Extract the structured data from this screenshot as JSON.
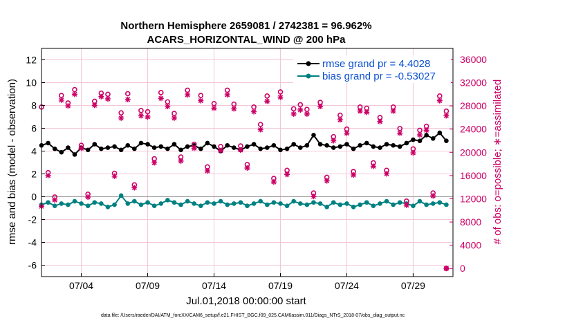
{
  "chart_data": {
    "type": "line",
    "title_line1": "Northern Hemisphere 2659081 / 2742381 = 96.962%",
    "title_line2": "ACARS_HORIZONTAL_WIND @ 200 hPa",
    "xlabel": "Jul.01,2018 00:00:00 start",
    "ylabel_left": "rmse and bias (model - observation)",
    "ylabel_right": "# of obs: o=possible; ∗=assimilated",
    "footer": "data file: /Users/raeder/DAI/ATM_forcXX/CAM6_setup/f.e21.FHIST_BGC.f09_025.CAM6assim.011/Diags_NTrS_2018-07/obs_diag_output.nc",
    "xlim": [
      1,
      32
    ],
    "ylim_left": [
      -7,
      13
    ],
    "ylim_right": [
      -1400,
      37900
    ],
    "x_ticks": [
      {
        "x": 4,
        "label": "07/04"
      },
      {
        "x": 9,
        "label": "07/09"
      },
      {
        "x": 14,
        "label": "07/14"
      },
      {
        "x": 19,
        "label": "07/19"
      },
      {
        "x": 24,
        "label": "07/24"
      },
      {
        "x": 29,
        "label": "07/29"
      }
    ],
    "y_ticks_left": [
      {
        "v": 12,
        "label": "12"
      },
      {
        "v": 10,
        "label": "10"
      },
      {
        "v": 8,
        "label": "8"
      },
      {
        "v": 6,
        "label": "6"
      },
      {
        "v": 4,
        "label": "4"
      },
      {
        "v": 2,
        "label": "2"
      },
      {
        "v": 0,
        "label": "0"
      },
      {
        "v": -2,
        "label": "-2"
      },
      {
        "v": -4,
        "label": "-4"
      },
      {
        "v": -6,
        "label": "-6"
      }
    ],
    "y_ticks_right": [
      {
        "v": 36000,
        "label": "36000"
      },
      {
        "v": 32000,
        "label": "32000"
      },
      {
        "v": 28000,
        "label": "28000"
      },
      {
        "v": 24000,
        "label": "24000"
      },
      {
        "v": 20000,
        "label": "20000"
      },
      {
        "v": 16000,
        "label": "16000"
      },
      {
        "v": 12000,
        "label": "12000"
      },
      {
        "v": 8000,
        "label": "8000"
      },
      {
        "v": 4000,
        "label": "4000"
      },
      {
        "v": 0,
        "label": "0"
      }
    ],
    "series": [
      {
        "name": "rmse grand pr = 4.4028",
        "color": "#000000",
        "axis": "left",
        "marker": "dot",
        "x": [
          1.0,
          1.5,
          2.0,
          2.5,
          3.0,
          3.5,
          4.0,
          4.5,
          5.0,
          5.5,
          6.0,
          6.5,
          7.0,
          7.5,
          8.0,
          8.5,
          9.0,
          9.5,
          10.0,
          10.5,
          11.0,
          11.5,
          12.0,
          12.5,
          13.0,
          13.5,
          14.0,
          14.5,
          15.0,
          15.5,
          16.0,
          16.5,
          17.0,
          17.5,
          18.0,
          18.5,
          19.0,
          19.5,
          20.0,
          20.5,
          21.0,
          21.5,
          22.0,
          22.5,
          23.0,
          23.5,
          24.0,
          24.5,
          25.0,
          25.5,
          26.0,
          26.5,
          27.0,
          27.5,
          28.0,
          28.5,
          29.0,
          29.5,
          30.0,
          30.5,
          31.0,
          31.5
        ],
        "y": [
          4.5,
          4.7,
          4.2,
          3.9,
          4.3,
          3.7,
          4.3,
          4.1,
          4.6,
          4.2,
          4.3,
          4.4,
          4.1,
          4.5,
          4.2,
          4.7,
          4.6,
          4.3,
          4.4,
          4.2,
          4.6,
          4.1,
          4.4,
          4.5,
          4.2,
          4.7,
          4.4,
          4.0,
          4.5,
          4.3,
          4.1,
          4.4,
          4.6,
          4.2,
          4.3,
          4.5,
          4.1,
          4.2,
          4.6,
          4.3,
          4.5,
          5.4,
          4.6,
          4.5,
          4.3,
          4.4,
          4.6,
          4.2,
          4.5,
          4.7,
          4.4,
          4.3,
          4.6,
          4.5,
          4.4,
          4.7,
          5.0,
          4.9,
          5.4,
          5.1,
          5.6,
          4.9
        ]
      },
      {
        "name": "bias grand pr = -0.53027",
        "color": "#008080",
        "axis": "left",
        "marker": "dot",
        "x": [
          1.0,
          1.5,
          2.0,
          2.5,
          3.0,
          3.5,
          4.0,
          4.5,
          5.0,
          5.5,
          6.0,
          6.5,
          7.0,
          7.5,
          8.0,
          8.5,
          9.0,
          9.5,
          10.0,
          10.5,
          11.0,
          11.5,
          12.0,
          12.5,
          13.0,
          13.5,
          14.0,
          14.5,
          15.0,
          15.5,
          16.0,
          16.5,
          17.0,
          17.5,
          18.0,
          18.5,
          19.0,
          19.5,
          20.0,
          20.5,
          21.0,
          21.5,
          22.0,
          22.5,
          23.0,
          23.5,
          24.0,
          24.5,
          25.0,
          25.5,
          26.0,
          26.5,
          27.0,
          27.5,
          28.0,
          28.5,
          29.0,
          29.5,
          30.0,
          30.5,
          31.0,
          31.5
        ],
        "y": [
          -0.7,
          -0.5,
          -0.8,
          -0.6,
          -0.7,
          -0.4,
          -0.6,
          -0.8,
          -0.5,
          -0.6,
          -0.9,
          -0.7,
          0.1,
          -0.6,
          -0.4,
          -0.7,
          -0.5,
          -0.8,
          -0.6,
          -0.3,
          -0.5,
          -0.7,
          -0.4,
          -0.6,
          -0.8,
          -0.5,
          -0.6,
          -0.4,
          -0.7,
          -0.6,
          -0.5,
          -0.8,
          -0.6,
          -0.4,
          -0.7,
          -0.5,
          -0.6,
          -0.8,
          -0.4,
          -0.6,
          -0.7,
          -0.5,
          -0.6,
          -0.9,
          -0.5,
          -0.7,
          -0.6,
          -0.9,
          -0.7,
          -0.5,
          -0.8,
          -0.6,
          -0.4,
          -0.7,
          -0.5,
          -0.6,
          -0.8,
          -0.4,
          -0.7,
          -0.6,
          -0.5,
          -0.7
        ]
      },
      {
        "name": "possible",
        "color": "#cc0066",
        "axis": "right",
        "marker": "circle",
        "x": [
          1.0,
          1.5,
          2.0,
          2.5,
          3.0,
          3.5,
          4.0,
          4.5,
          5.0,
          5.5,
          6.0,
          6.5,
          7.0,
          7.5,
          8.0,
          8.5,
          9.0,
          9.5,
          10.0,
          10.5,
          11.0,
          11.5,
          12.0,
          12.5,
          13.0,
          13.5,
          14.0,
          14.5,
          15.0,
          15.5,
          16.0,
          16.5,
          17.0,
          17.5,
          18.0,
          18.5,
          19.0,
          19.5,
          20.0,
          20.5,
          21.0,
          21.5,
          22.0,
          22.5,
          23.0,
          23.5,
          24.0,
          24.5,
          25.0,
          25.5,
          26.0,
          26.5,
          27.0,
          27.5,
          28.0,
          28.5,
          29.0,
          29.5,
          30.0,
          30.5,
          31.0,
          31.5
        ],
        "y": [
          27800,
          16500,
          12300,
          29800,
          28500,
          30800,
          21200,
          12800,
          28800,
          30200,
          30000,
          16400,
          26800,
          30100,
          14400,
          27200,
          27000,
          18900,
          30300,
          28700,
          26700,
          19200,
          30700,
          21400,
          29800,
          17500,
          28400,
          21000,
          30700,
          28300,
          21100,
          17900,
          27800,
          24800,
          29700,
          15500,
          30400,
          16900,
          27500,
          28200,
          27400,
          13000,
          28600,
          15700,
          22700,
          26400,
          24000,
          16700,
          27800,
          27600,
          18200,
          26000,
          16900,
          27800,
          24100,
          11600,
          20600,
          23800,
          24500,
          13000,
          29700,
          27100
        ]
      },
      {
        "name": "assimilated",
        "color": "#cc0066",
        "axis": "right",
        "marker": "star",
        "x": [
          1.0,
          1.5,
          2.0,
          2.5,
          3.0,
          3.5,
          4.0,
          4.5,
          5.0,
          5.5,
          6.0,
          6.5,
          7.0,
          7.5,
          8.0,
          8.5,
          9.0,
          9.5,
          10.0,
          10.5,
          11.0,
          11.5,
          12.0,
          12.5,
          13.0,
          13.5,
          14.0,
          14.5,
          15.0,
          15.5,
          16.0,
          16.5,
          17.0,
          17.5,
          18.0,
          18.5,
          19.0,
          19.5,
          20.0,
          20.5,
          21.0,
          21.5,
          22.0,
          22.5,
          23.0,
          23.5,
          24.0,
          24.5,
          25.0,
          25.5,
          26.0,
          26.5,
          27.0,
          27.5,
          28.0,
          28.5,
          29.0,
          29.5,
          30.0,
          30.5,
          31.0,
          31.5
        ],
        "y": [
          10700,
          16000,
          11800,
          29000,
          28000,
          30000,
          20700,
          12300,
          28100,
          29600,
          29200,
          15900,
          25900,
          29100,
          13900,
          26300,
          26100,
          18200,
          29300,
          27900,
          25900,
          18500,
          29900,
          20700,
          28900,
          16800,
          27600,
          20300,
          29900,
          27500,
          20400,
          17300,
          27000,
          23900,
          28800,
          14900,
          29500,
          16200,
          26600,
          27300,
          26600,
          12400,
          27900,
          15100,
          22000,
          25600,
          23300,
          16100,
          27100,
          26900,
          17600,
          25300,
          16300,
          27100,
          23300,
          10900,
          19900,
          23000,
          23800,
          12500,
          28900,
          26300
        ]
      }
    ],
    "right_zero_point": {
      "x": 31.5,
      "y": 0
    }
  }
}
